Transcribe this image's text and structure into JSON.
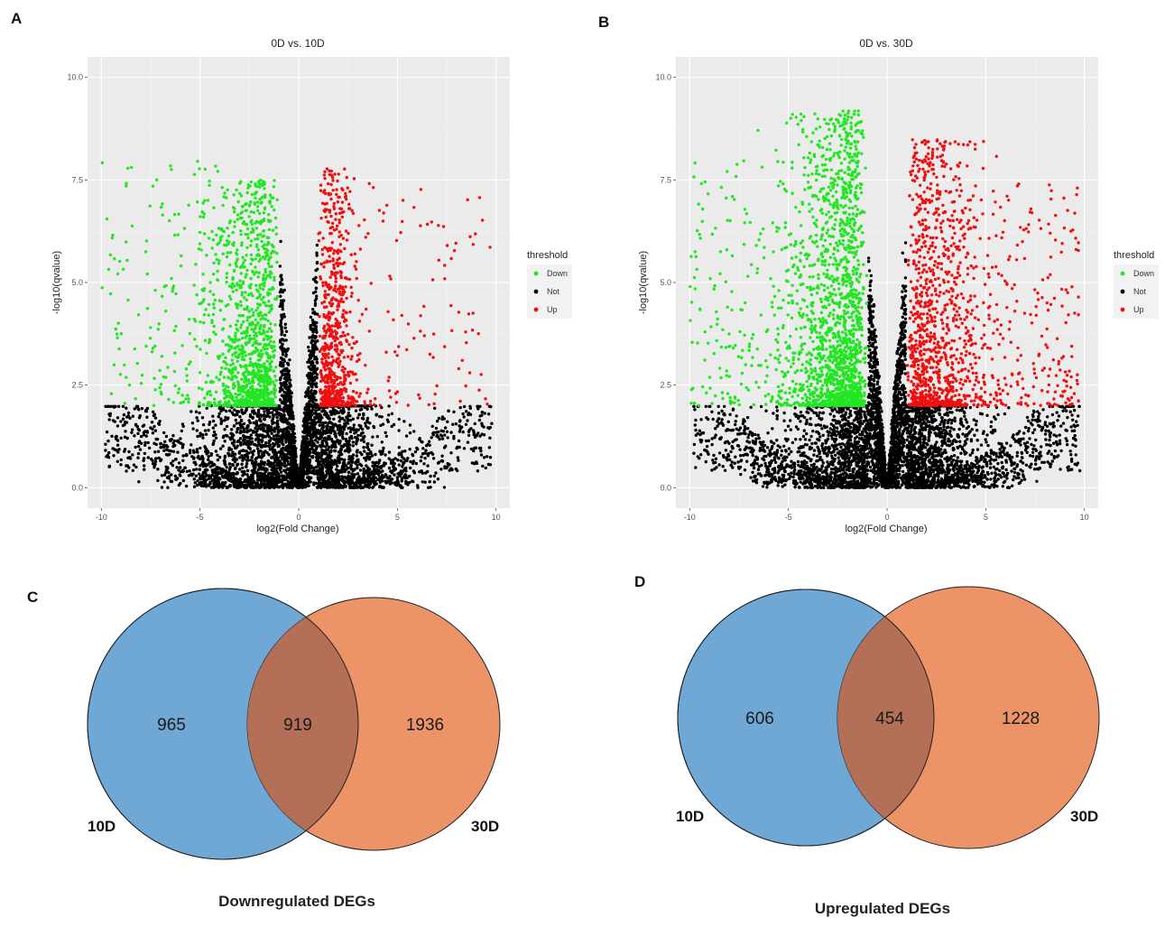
{
  "panels": {
    "A": "A",
    "B": "B",
    "C": "C",
    "D": "D"
  },
  "chart_data": [
    {
      "type": "scatter",
      "subtype": "volcano",
      "title": "0D vs. 10D",
      "xlabel": "log2(Fold Change)",
      "ylabel": "-log10(qvalue)",
      "xlim": [
        -10.7,
        10.7
      ],
      "ylim": [
        -0.5,
        10.5
      ],
      "xticks": [
        -10,
        -5,
        0,
        5,
        10
      ],
      "xtick_labels": [
        "-10",
        "-5",
        "0",
        "5",
        "10"
      ],
      "yticks": [
        0,
        2.5,
        5,
        7.5,
        10
      ],
      "ytick_labels": [
        "0.0",
        "2.5",
        "5.0",
        "7.5",
        "10.0"
      ],
      "grid": true,
      "legend_title": "threshold",
      "legend_position": "right",
      "series": [
        {
          "name": "Down",
          "color": "#22e622",
          "approx_count": 1884,
          "x_range": [
            -10,
            -1
          ],
          "y_range": [
            2,
            9.8
          ]
        },
        {
          "name": "Not",
          "color": "#000000",
          "approx_count": 14000,
          "x_range": [
            -9.8,
            9.5
          ],
          "y_range": [
            0,
            6
          ]
        },
        {
          "name": "Up",
          "color": "#ee1111",
          "approx_count": 1060,
          "x_range": [
            1,
            9.5
          ],
          "y_range": [
            2,
            9.7
          ]
        }
      ]
    },
    {
      "type": "scatter",
      "subtype": "volcano",
      "title": "0D vs. 30D",
      "xlabel": "log2(Fold Change)",
      "ylabel": "-log10(qvalue)",
      "xlim": [
        -10.7,
        10.7
      ],
      "ylim": [
        -0.5,
        10.5
      ],
      "xticks": [
        -10,
        -5,
        0,
        5,
        10
      ],
      "xtick_labels": [
        "-10",
        "-5",
        "0",
        "5",
        "10"
      ],
      "yticks": [
        0,
        2.5,
        5,
        7.5,
        10
      ],
      "ytick_labels": [
        "0.0",
        "2.5",
        "5.0",
        "7.5",
        "10.0"
      ],
      "grid": true,
      "legend_title": "threshold",
      "legend_position": "right",
      "series": [
        {
          "name": "Down",
          "color": "#22e622",
          "approx_count": 2855,
          "x_range": [
            -10,
            -1
          ],
          "y_range": [
            2,
            9.8
          ]
        },
        {
          "name": "Not",
          "color": "#000000",
          "approx_count": 16000,
          "x_range": [
            -10,
            10
          ],
          "y_range": [
            0,
            6.6
          ]
        },
        {
          "name": "Up",
          "color": "#ee1111",
          "approx_count": 1682,
          "x_range": [
            1,
            10
          ],
          "y_range": [
            2,
            10
          ]
        }
      ]
    },
    {
      "type": "venn",
      "title": "Downregulated DEGs",
      "sets": [
        "10D",
        "30D"
      ],
      "only_a": 965,
      "intersection": 919,
      "only_b": 1936,
      "colors": [
        "#6fa8d4",
        "#ec9367"
      ]
    },
    {
      "type": "venn",
      "title": "Upregulated DEGs",
      "sets": [
        "10D",
        "30D"
      ],
      "only_a": 606,
      "intersection": 454,
      "only_b": 1228,
      "colors": [
        "#6fa8d4",
        "#ec9367"
      ]
    }
  ]
}
